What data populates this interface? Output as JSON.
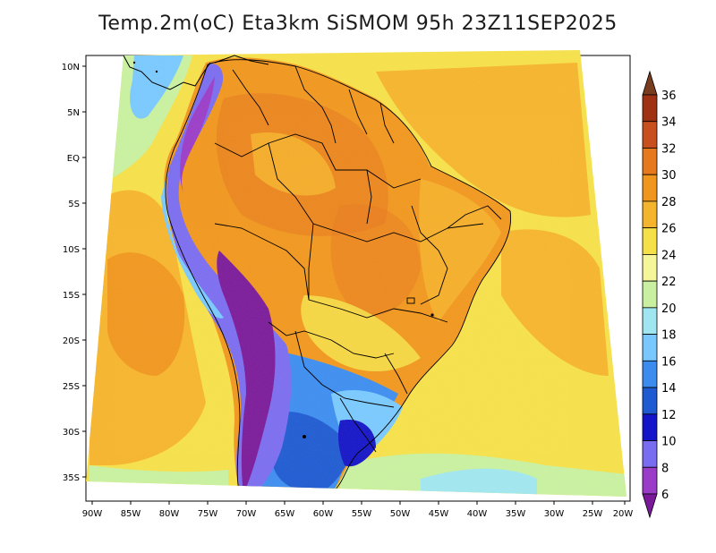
{
  "title": "Temp.2m(oC) Eta3km SiSMOM 95h 23Z11SEP2025",
  "axes": {
    "lon_labels": [
      "90W",
      "85W",
      "80W",
      "75W",
      "70W",
      "65W",
      "60W",
      "55W",
      "50W",
      "45W",
      "40W",
      "35W",
      "30W",
      "25W",
      "20W"
    ],
    "lat_labels": [
      "10N",
      "5N",
      "EQ",
      "5S",
      "10S",
      "15S",
      "20S",
      "25S",
      "30S",
      "35S"
    ]
  },
  "colorbar": {
    "levels": [
      "6",
      "8",
      "10",
      "12",
      "14",
      "16",
      "18",
      "20",
      "22",
      "24",
      "26",
      "28",
      "30",
      "32",
      "34",
      "36"
    ],
    "colors": [
      "#7a1a9a",
      "#9a3cc8",
      "#7a6cf0",
      "#1414c8",
      "#1e5ad2",
      "#3c8cf0",
      "#78c8ff",
      "#a0e6f0",
      "#c8f0a0",
      "#f5f59a",
      "#f5e04a",
      "#f5b42d",
      "#f0961e",
      "#e6781e",
      "#c8501e",
      "#a03214",
      "#783c1e"
    ]
  },
  "legend_colors": {
    "ocean_warm": "#f0961e",
    "ocean_mid": "#f5e04a",
    "ocean_cool": "#c8f0a0",
    "land_hot": "#f0961e",
    "andes_cold": "#7a1a9a"
  }
}
